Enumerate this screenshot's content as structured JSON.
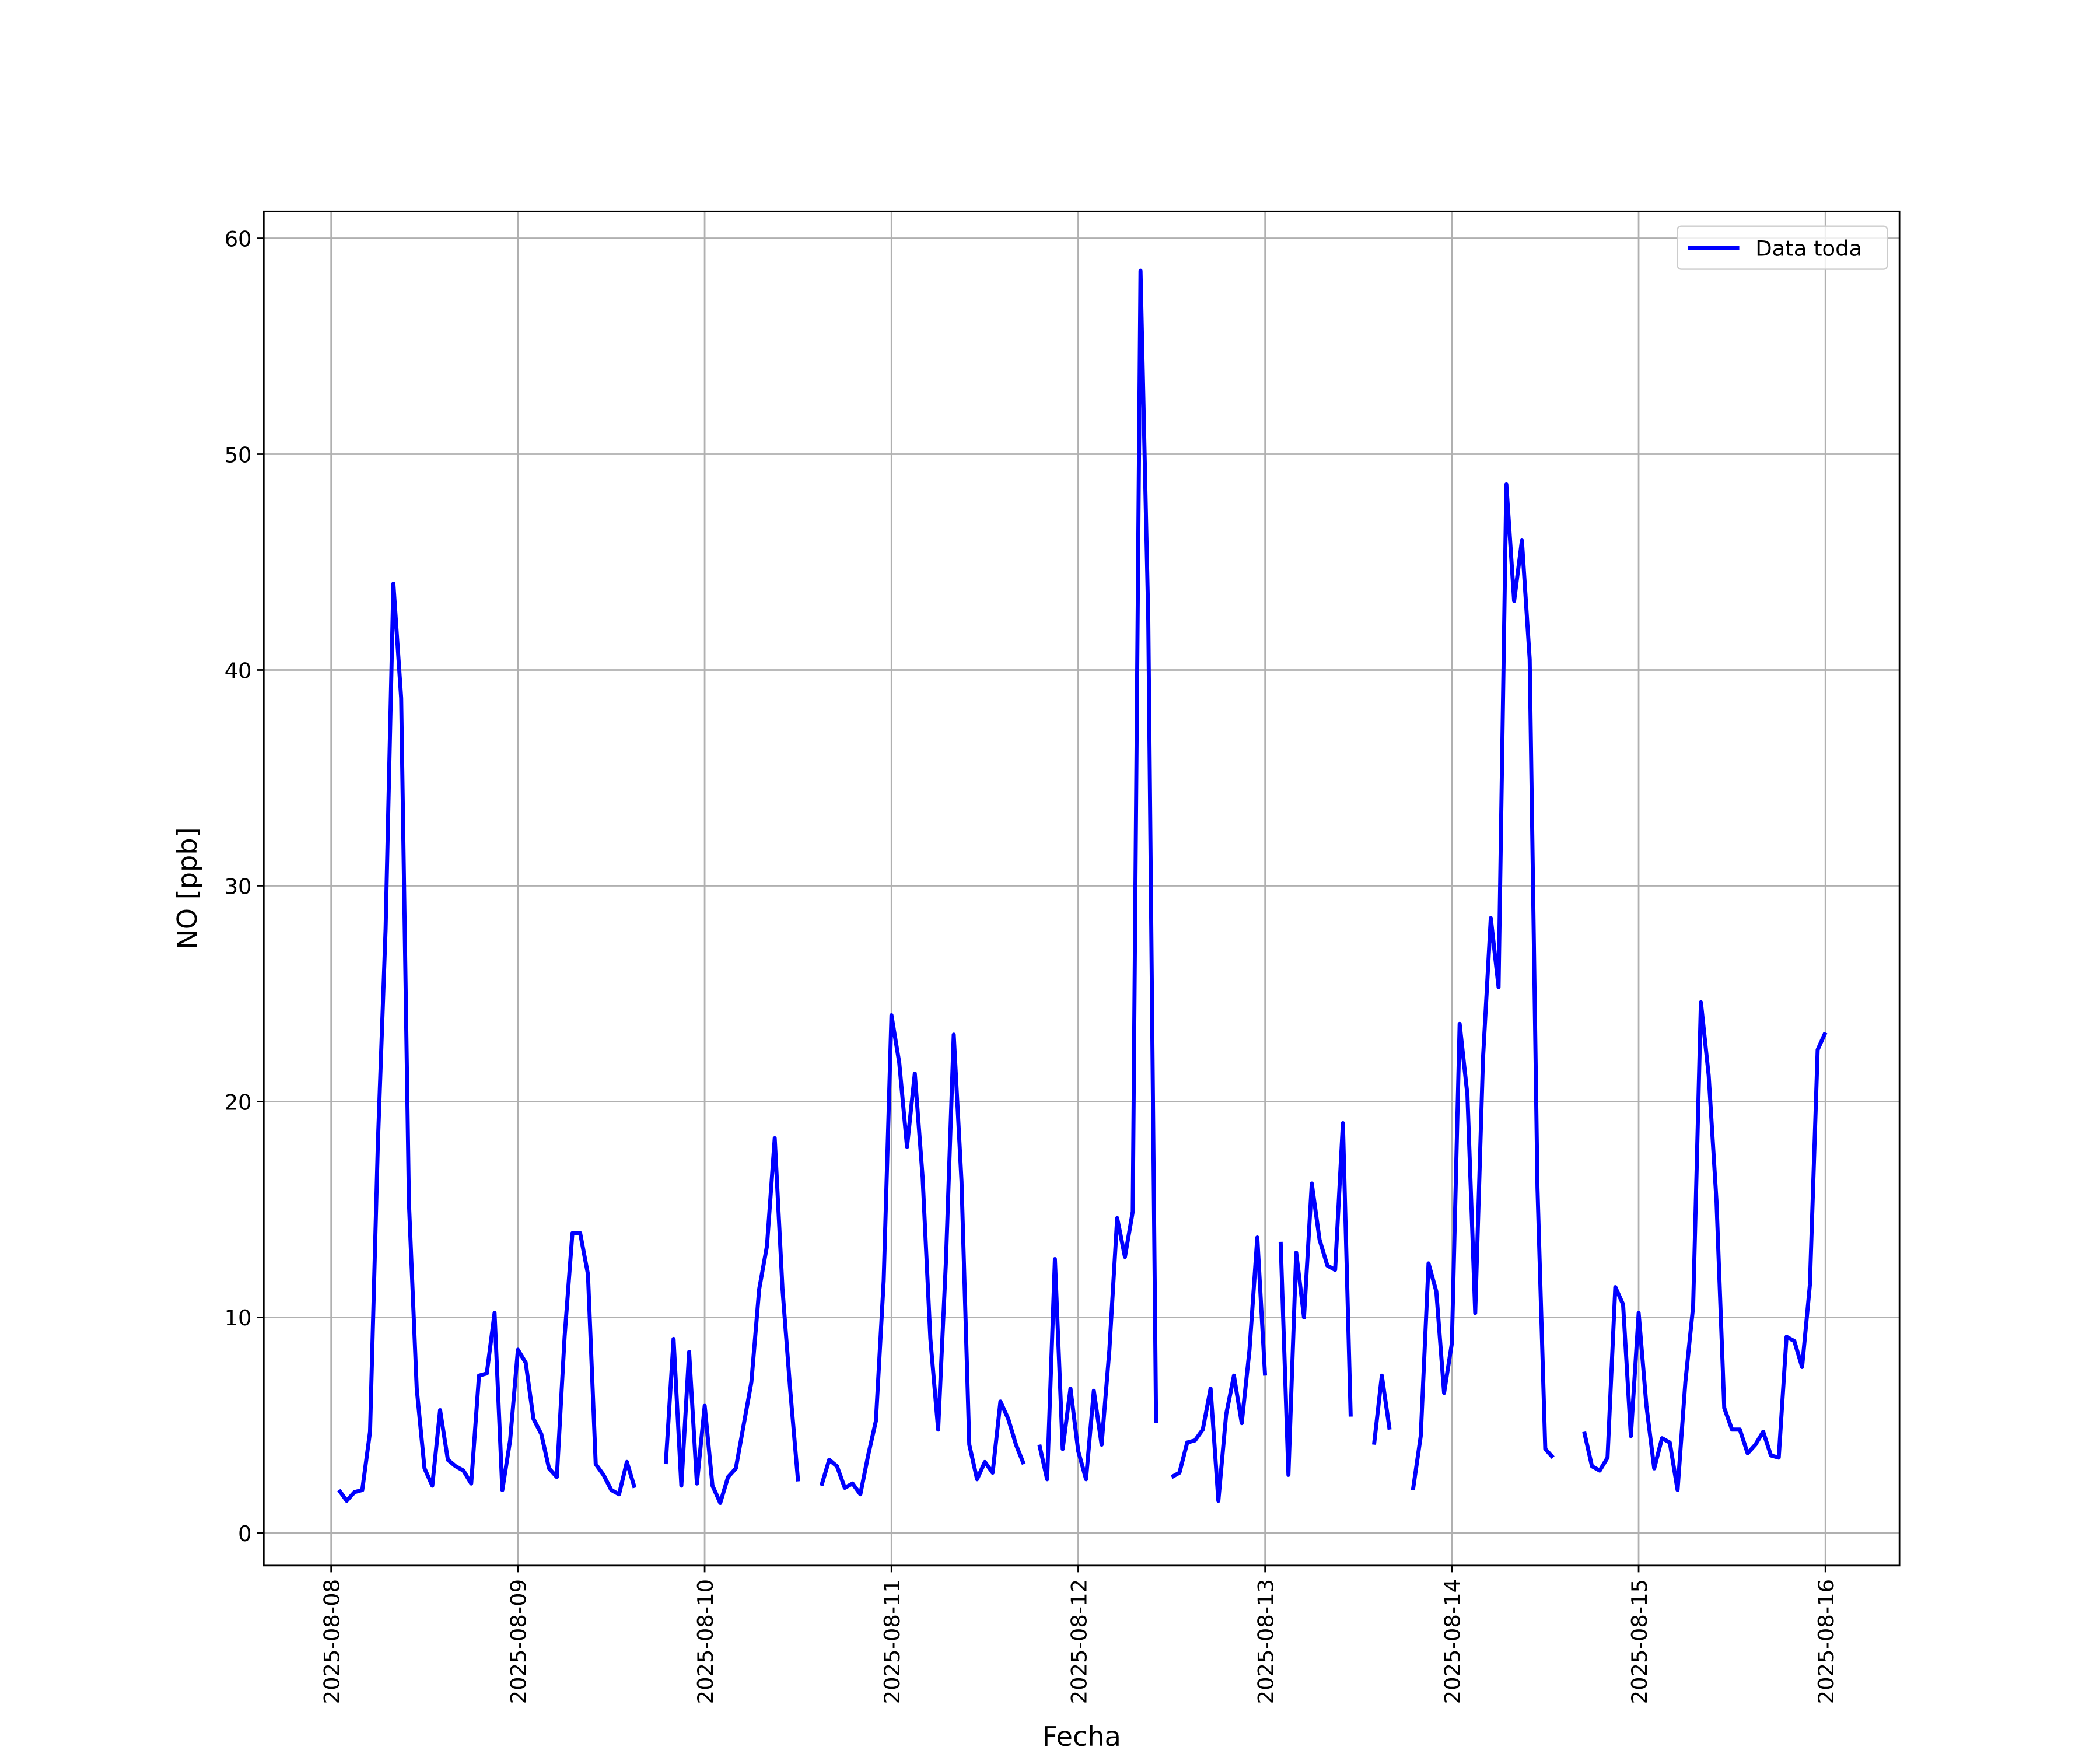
{
  "chart_data": {
    "type": "line",
    "xlabel": "Fecha",
    "ylabel": "NO [ppb]",
    "categories": [
      "2025-08-08",
      null,
      null,
      null,
      null,
      null,
      null,
      null,
      null,
      null,
      null,
      null,
      null,
      null,
      null,
      null,
      null,
      null,
      null,
      null,
      null,
      null,
      null,
      null,
      "2025-08-09",
      null,
      null,
      null,
      null,
      null,
      null,
      null,
      null,
      null,
      null,
      null,
      null,
      null,
      null,
      null,
      null,
      null,
      null,
      null,
      null,
      null,
      null,
      null,
      "2025-08-10",
      null,
      null,
      null,
      null,
      null,
      null,
      null,
      null,
      null,
      null,
      null,
      null,
      null,
      null,
      null,
      null,
      null,
      null,
      null,
      null,
      null,
      null,
      null,
      "2025-08-11",
      null,
      null,
      null,
      null,
      null,
      null,
      null,
      null,
      null,
      null,
      null,
      null,
      null,
      null,
      null,
      null,
      null,
      null,
      null,
      null,
      null,
      null,
      null,
      "2025-08-12",
      null,
      null,
      null,
      null,
      null,
      null,
      null,
      null,
      null,
      null,
      null,
      null,
      null,
      null,
      null,
      null,
      null,
      null,
      null,
      null,
      null,
      null,
      null,
      "2025-08-13",
      null,
      null,
      null,
      null,
      null,
      null,
      null,
      null,
      null,
      null,
      null,
      null,
      null,
      null,
      null,
      null,
      null,
      null,
      null,
      null,
      null,
      null,
      null,
      "2025-08-14",
      null,
      null,
      null,
      null,
      null,
      null,
      null,
      null,
      null,
      null,
      null,
      null,
      null,
      null,
      null,
      null,
      null,
      null,
      null,
      null,
      null,
      null,
      null,
      "2025-08-15",
      null,
      null,
      null,
      null,
      null,
      null,
      null,
      null,
      null,
      null,
      null,
      null,
      null,
      null,
      null,
      null,
      null,
      null,
      null,
      null,
      null,
      null,
      null,
      "2025-08-16"
    ],
    "series": [
      {
        "name": "Data toda",
        "color": "#0000ff",
        "values": [
          null,
          2.0,
          1.5,
          1.9,
          2.0,
          4.7,
          18,
          28,
          44,
          38.7,
          15.3,
          6.7,
          3.0,
          2.2,
          5.7,
          3.4,
          3.1,
          2.9,
          2.3,
          7.3,
          7.4,
          10.2,
          2.0,
          4.3,
          8.5,
          7.9,
          5.3,
          4.6,
          3.0,
          2.6,
          9.1,
          13.9,
          13.9,
          12.0,
          3.2,
          2.7,
          2.0,
          1.8,
          3.3,
          2.1,
          null,
          null,
          null,
          3.2,
          9.0,
          2.2,
          8.4,
          2.3,
          5.9,
          2.2,
          1.4,
          2.6,
          3.0,
          5.0,
          7.0,
          11.3,
          13.3,
          18.3,
          11.3,
          6.6,
          2.4,
          null,
          null,
          2.2,
          3.4,
          3.1,
          2.1,
          2.3,
          1.8,
          3.6,
          5.2,
          11.7,
          24.0,
          21.8,
          17.9,
          21.3,
          16.5,
          9.0,
          4.8,
          12.6,
          23.1,
          16.3,
          4.1,
          2.5,
          3.3,
          2.8,
          6.1,
          5.3,
          4.1,
          3.2,
          null,
          4.1,
          2.5,
          12.7,
          3.9,
          6.7,
          3.8,
          2.5,
          6.6,
          4.1,
          8.5,
          14.6,
          12.8,
          14.9,
          58.5,
          42.3,
          5.1,
          null,
          2.6,
          2.8,
          4.2,
          4.3,
          4.8,
          6.7,
          1.5,
          5.5,
          7.3,
          5.1,
          8.5,
          13.7,
          7.3,
          null,
          13.5,
          2.7,
          13.0,
          10.0,
          16.2,
          13.6,
          12.4,
          12.2,
          19.0,
          5.4,
          null,
          null,
          4.1,
          7.3,
          4.8,
          null,
          null,
          2.0,
          4.5,
          12.5,
          11.2,
          6.5,
          8.8,
          23.6,
          20.3,
          10.2,
          22.0,
          28.5,
          25.3,
          48.6,
          43.2,
          46.0,
          40.5,
          16.0,
          3.9,
          3.5,
          null,
          null,
          null,
          4.7,
          3.1,
          2.9,
          3.5,
          11.4,
          10.6,
          4.5,
          10.2,
          5.9,
          3.0,
          4.4,
          4.2,
          2.0,
          7.0,
          10.5,
          24.6,
          21.2,
          15.4,
          5.8,
          4.8,
          4.8,
          3.7,
          4.1,
          4.7,
          3.6,
          3.5,
          9.1,
          8.9,
          7.7,
          11.5,
          22.4,
          23.2
        ]
      }
    ],
    "ylim": [
      -1.5,
      61.25
    ],
    "yticks": [
      0,
      10,
      20,
      30,
      40,
      50,
      60
    ],
    "grid": true,
    "legend": "upper right"
  }
}
